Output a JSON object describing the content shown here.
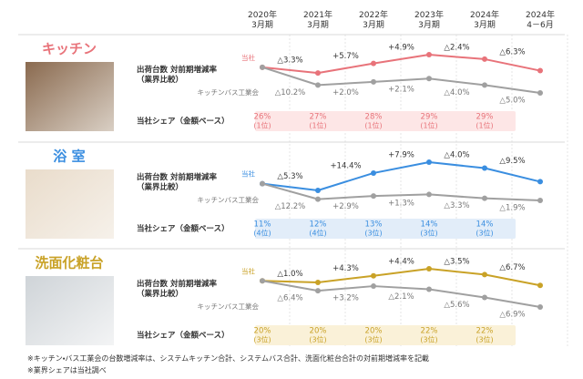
{
  "header": {
    "categories": [
      "2020年\n3月期",
      "2021年\n3月期",
      "2022年\n3月期",
      "2023年\n3月期",
      "2024年\n3月期",
      "2024年\n4－6月"
    ]
  },
  "chart_data": [
    {
      "type": "line",
      "title": "キッチン",
      "y_label": "出荷台数 対前期増減率\n（業界比較）",
      "series": [
        {
          "name": "当社",
          "color": "#e8737a",
          "values": [
            null,
            -3.3,
            5.7,
            4.9,
            -2.4,
            -6.3
          ],
          "value_labels": [
            null,
            "△3.3%",
            "+5.7%",
            "+4.9%",
            "△2.4%",
            "△6.3%"
          ]
        },
        {
          "name": "キッチンバス工業会",
          "color": "#a0a0a0",
          "values": [
            null,
            -10.2,
            2.0,
            2.1,
            -4.0,
            -5.0
          ],
          "value_labels": [
            null,
            "△10.2%",
            "+2.0%",
            "+2.1%",
            "△4.0%",
            "△5.0%"
          ]
        }
      ],
      "share": {
        "label": "当社シェア（金額ベース）",
        "color": "#fde6e6",
        "values": [
          26,
          27,
          28,
          29,
          29
        ],
        "value_labels": [
          "26%",
          "27%",
          "28%",
          "29%",
          "29%"
        ],
        "ranks": [
          "(1位)",
          "(1位)",
          "(1位)",
          "(1位)",
          "(1位)"
        ]
      }
    },
    {
      "type": "line",
      "title": "浴 室",
      "y_label": "出荷台数 対前期増減率\n（業界比較）",
      "series": [
        {
          "name": "当社",
          "color": "#3a8ee0",
          "values": [
            null,
            -5.3,
            14.4,
            7.9,
            -4.0,
            -9.5
          ],
          "value_labels": [
            null,
            "△5.3%",
            "+14.4%",
            "+7.9%",
            "△4.0%",
            "△9.5%"
          ]
        },
        {
          "name": "キッチンバス工業会",
          "color": "#a0a0a0",
          "values": [
            null,
            -12.2,
            2.9,
            1.3,
            -3.3,
            -1.9
          ],
          "value_labels": [
            null,
            "△12.2%",
            "+2.9%",
            "+1.3%",
            "△3.3%",
            "△1.9%"
          ]
        }
      ],
      "share": {
        "label": "当社シェア（金額ベース）",
        "color": "#e2edf9",
        "values": [
          11,
          12,
          13,
          14,
          14
        ],
        "value_labels": [
          "11%",
          "12%",
          "13%",
          "14%",
          "14%"
        ],
        "ranks": [
          "(4位)",
          "(4位)",
          "(3位)",
          "(3位)",
          "(3位)"
        ]
      }
    },
    {
      "type": "line",
      "title": "洗面化粧台",
      "y_label": "出荷台数 対前期増減率\n（業界比較）",
      "series": [
        {
          "name": "当社",
          "color": "#c9a227",
          "values": [
            null,
            -1.0,
            4.3,
            4.4,
            -3.5,
            -6.7
          ],
          "value_labels": [
            null,
            "△1.0%",
            "+4.3%",
            "+4.4%",
            "△3.5%",
            "△6.7%"
          ]
        },
        {
          "name": "キッチンバス工業会",
          "color": "#a0a0a0",
          "values": [
            null,
            -6.4,
            3.2,
            -2.1,
            -5.6,
            -6.9
          ],
          "value_labels": [
            null,
            "△6.4%",
            "+3.2%",
            "△2.1%",
            "△5.6%",
            "△6.9%"
          ]
        }
      ],
      "share": {
        "label": "当社シェア（金額ベース）",
        "color": "#faf1d8",
        "values": [
          20,
          20,
          20,
          22,
          22
        ],
        "value_labels": [
          "20%",
          "20%",
          "20%",
          "22%",
          "22%"
        ],
        "ranks": [
          "(3位)",
          "(3位)",
          "(3位)",
          "(3位)",
          "(3位)"
        ]
      }
    }
  ],
  "footnotes": [
    "※キッチン・バス工業会の台数増減率は、システムキッチン合計、システムバス合計、洗面化粧台合計の対前期増減率を記載",
    "※業界シェアは当社調べ"
  ]
}
